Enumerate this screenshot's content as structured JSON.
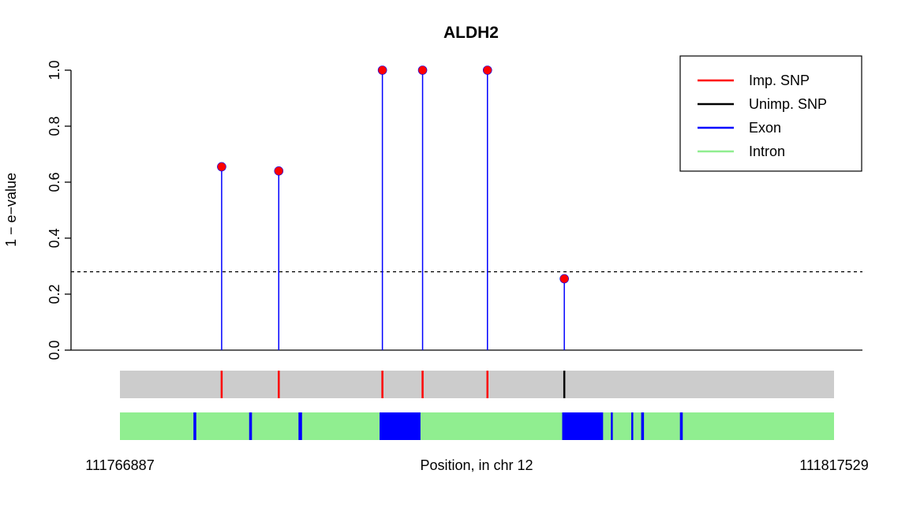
{
  "chart_data": {
    "type": "scatter",
    "title": "ALDH2",
    "xlabel": "Position, in chr 12",
    "ylabel": "1 − e−value",
    "xlim": [
      111766887,
      111817529
    ],
    "ylim": [
      0,
      1
    ],
    "yticks": [
      "0.0",
      "0.2",
      "0.4",
      "0.6",
      "0.8",
      "1.0"
    ],
    "x_start_label": "111766887",
    "x_end_label": "111817529",
    "threshold": 0.28,
    "points": [
      {
        "x": 111774100,
        "y": 0.655
      },
      {
        "x": 111778150,
        "y": 0.64
      },
      {
        "x": 111785500,
        "y": 1.0
      },
      {
        "x": 111788350,
        "y": 1.0
      },
      {
        "x": 111792950,
        "y": 1.0
      },
      {
        "x": 111798400,
        "y": 0.255
      }
    ],
    "snp_track": [
      {
        "x": 111774100,
        "type": "imputed"
      },
      {
        "x": 111778150,
        "type": "imputed"
      },
      {
        "x": 111785500,
        "type": "imputed"
      },
      {
        "x": 111788350,
        "type": "imputed"
      },
      {
        "x": 111792950,
        "type": "imputed"
      },
      {
        "x": 111798400,
        "type": "unimputed"
      }
    ],
    "exons": [
      [
        111772100,
        111772300
      ],
      [
        111776050,
        111776250
      ],
      [
        111779550,
        111779800
      ],
      [
        111785300,
        111788200
      ],
      [
        111798250,
        111801150
      ],
      [
        111801700,
        111801800
      ],
      [
        111803150,
        111803250
      ],
      [
        111803850,
        111804050
      ],
      [
        111806600,
        111806800
      ]
    ],
    "legend": {
      "position": "top-right",
      "entries": [
        {
          "label": "Imp. SNP",
          "color": "#ff0000"
        },
        {
          "label": "Unimp. SNP",
          "color": "#000000"
        },
        {
          "label": "Exon",
          "color": "#0000ff"
        },
        {
          "label": "Intron",
          "color": "#90ee90"
        }
      ]
    },
    "colors": {
      "stem": "#0000ff",
      "point": "#ff0000",
      "track_bg": "#cccccc",
      "intron": "#90ee90",
      "exon": "#0000ff",
      "imputed": "#ff0000",
      "unimputed": "#000000"
    }
  }
}
